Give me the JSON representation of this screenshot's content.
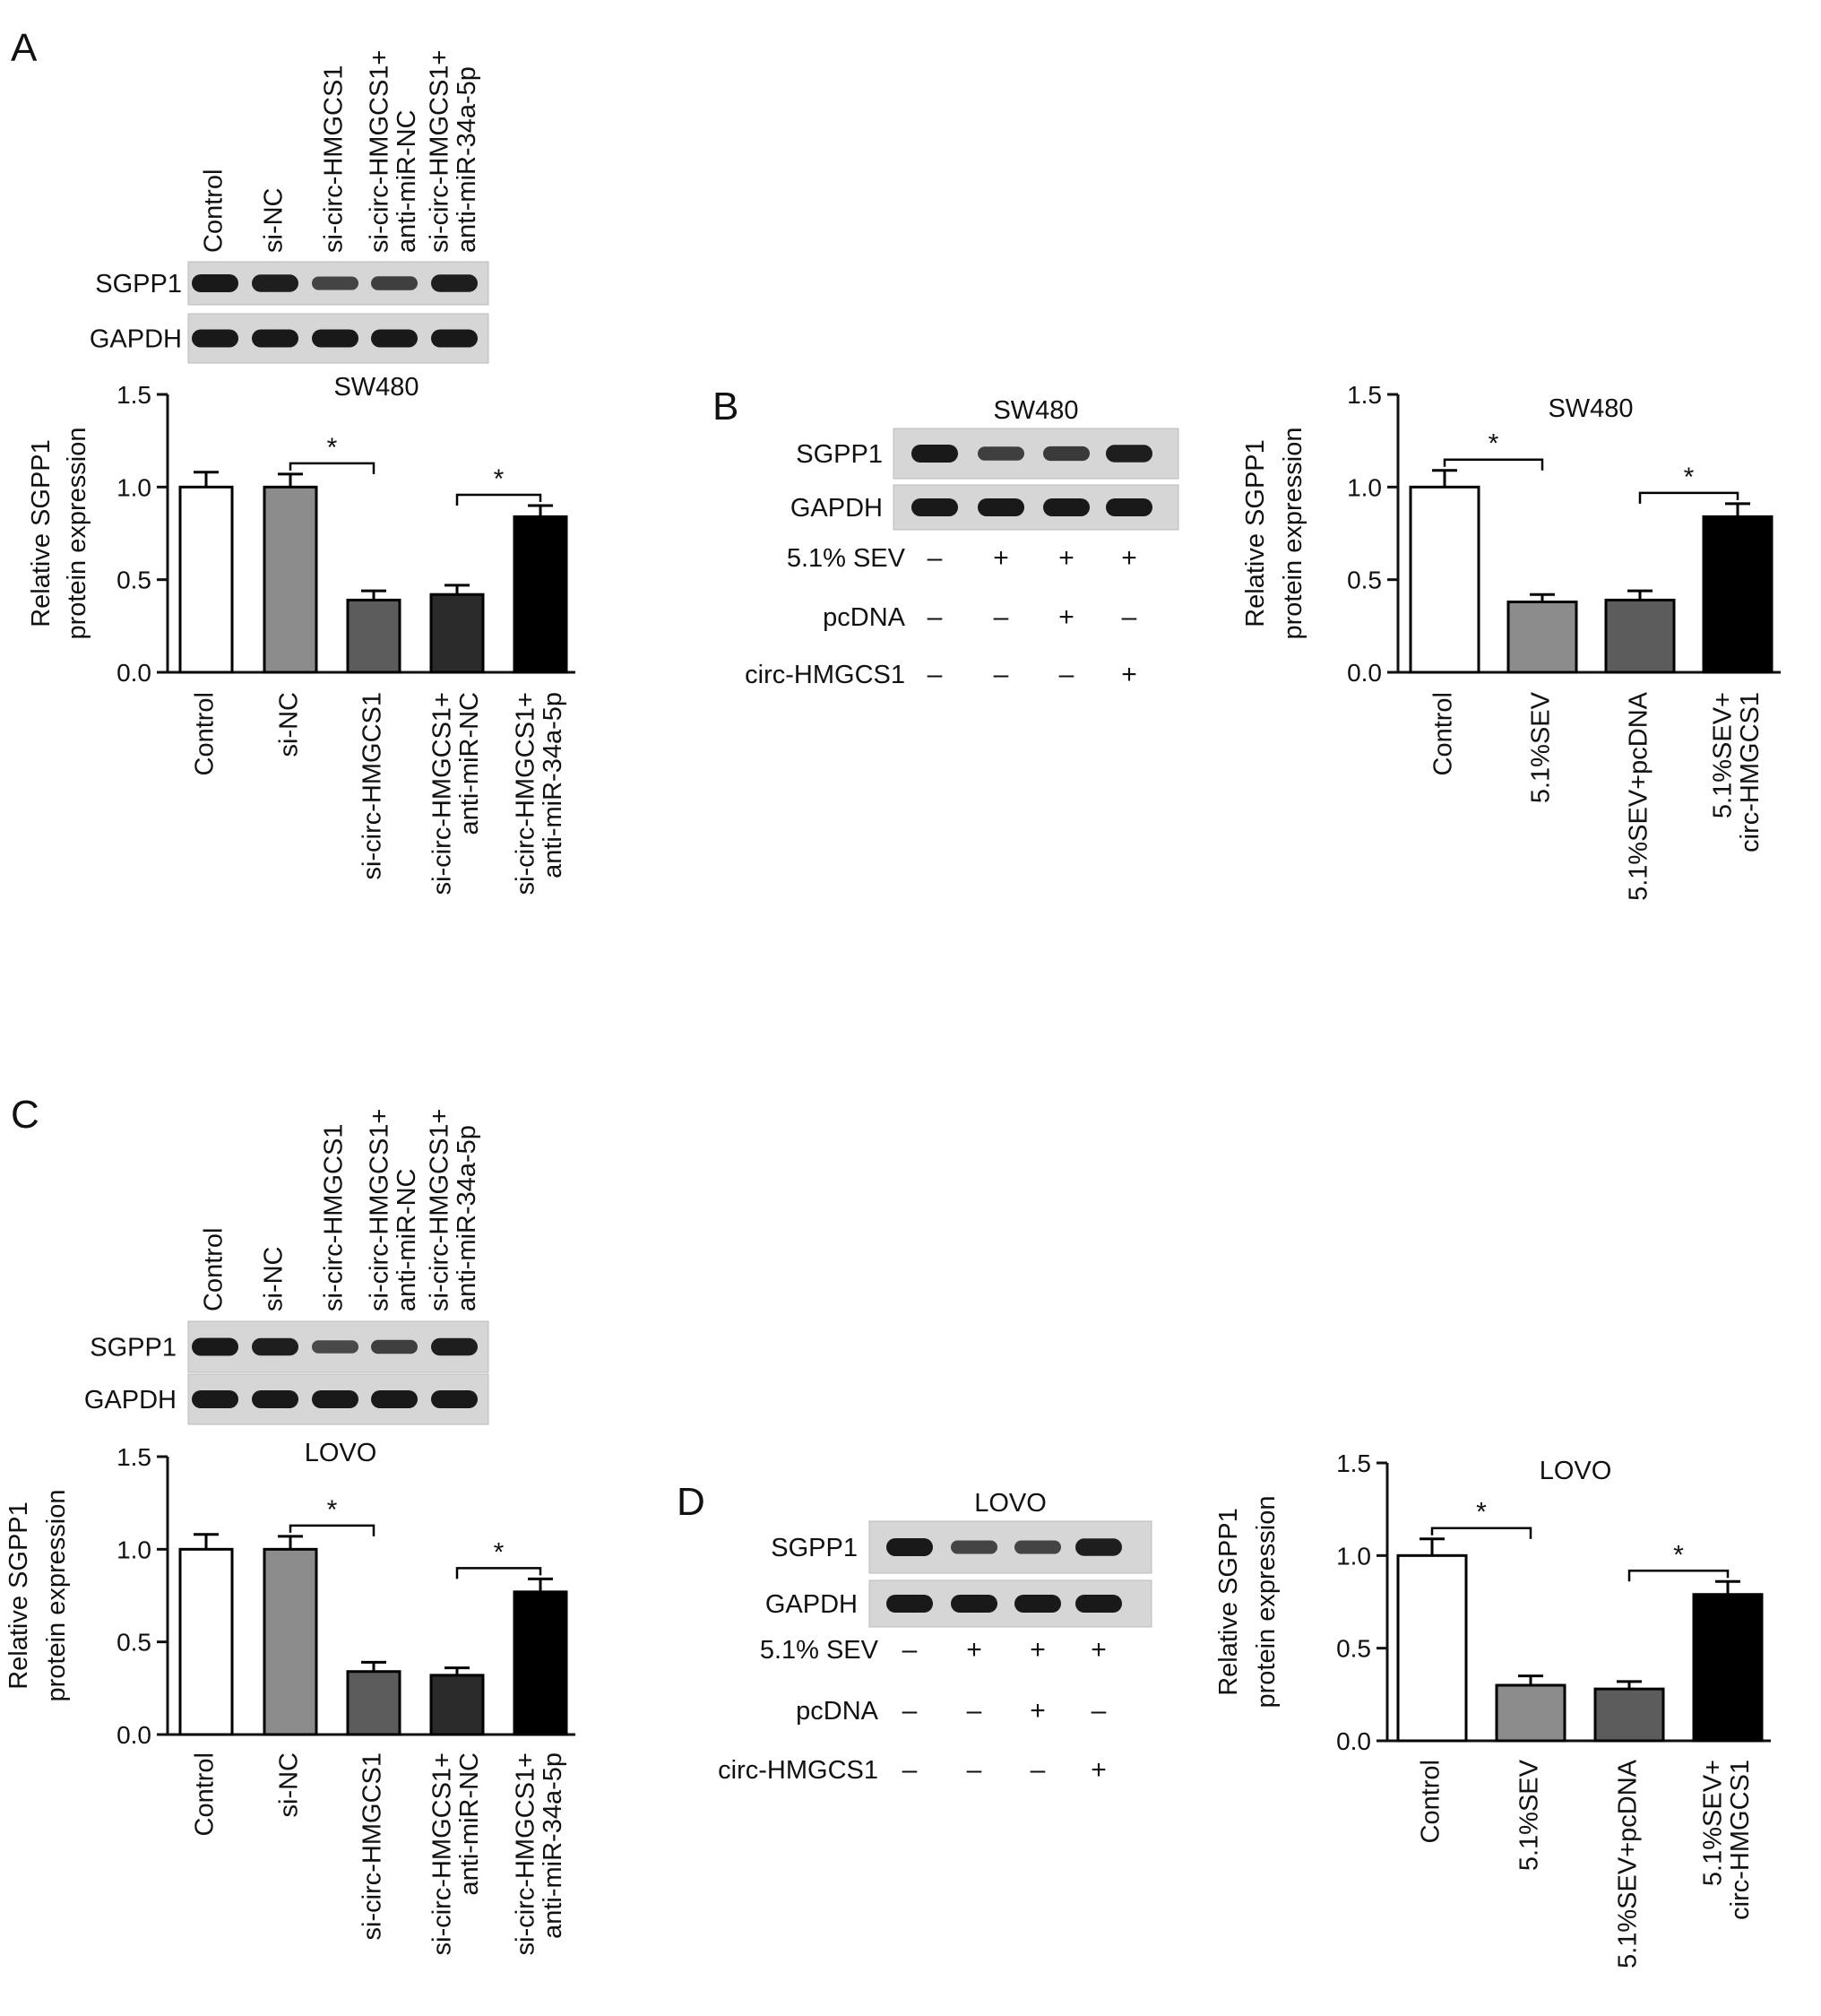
{
  "panels": {
    "A": {
      "letter": "A"
    },
    "B": {
      "letter": "B"
    },
    "C": {
      "letter": "C"
    },
    "D": {
      "letter": "D"
    }
  },
  "blots": {
    "A": {
      "lanes": [
        "Control",
        "si-NC",
        "si-circ-HMGCS1",
        [
          "si-circ-HMGCS1+",
          "anti-miR-NC"
        ],
        [
          "si-circ-HMGCS1+",
          "anti-miR-34a-5p"
        ]
      ],
      "rows": [
        {
          "label": "SGPP1",
          "intensity": [
            1.0,
            0.95,
            0.55,
            0.6,
            0.95
          ]
        },
        {
          "label": "GAPDH",
          "intensity": [
            1.0,
            1.0,
            1.0,
            1.0,
            1.0
          ]
        }
      ]
    },
    "B": {
      "title": "SW480",
      "rows": [
        {
          "label": "SGPP1",
          "intensity": [
            1.0,
            0.6,
            0.65,
            0.95
          ]
        },
        {
          "label": "GAPDH",
          "intensity": [
            1.0,
            1.0,
            1.0,
            1.0
          ]
        }
      ],
      "treatments": [
        {
          "label": "5.1% SEV",
          "signs": [
            "–",
            "+",
            "+",
            "+"
          ]
        },
        {
          "label": "pcDNA",
          "signs": [
            "–",
            "–",
            "+",
            "–"
          ]
        },
        {
          "label": "circ-HMGCS1",
          "signs": [
            "–",
            "–",
            "–",
            "+"
          ]
        }
      ]
    },
    "C": {
      "lanes": [
        "Control",
        "si-NC",
        "si-circ-HMGCS1",
        [
          "si-circ-HMGCS1+",
          "anti-miR-NC"
        ],
        [
          "si-circ-HMGCS1+",
          "anti-miR-34a-5p"
        ]
      ],
      "rows": [
        {
          "label": "SGPP1",
          "intensity": [
            1.0,
            0.95,
            0.5,
            0.6,
            0.95
          ]
        },
        {
          "label": "GAPDH",
          "intensity": [
            1.0,
            1.0,
            1.0,
            1.0,
            1.0
          ]
        }
      ]
    },
    "D": {
      "title": "LOVO",
      "rows": [
        {
          "label": "SGPP1",
          "intensity": [
            1.0,
            0.55,
            0.55,
            0.95
          ]
        },
        {
          "label": "GAPDH",
          "intensity": [
            1.0,
            1.0,
            1.0,
            1.0
          ]
        }
      ],
      "treatments": [
        {
          "label": "5.1% SEV",
          "signs": [
            "–",
            "+",
            "+",
            "+"
          ]
        },
        {
          "label": "pcDNA",
          "signs": [
            "–",
            "–",
            "+",
            "–"
          ]
        },
        {
          "label": "circ-HMGCS1",
          "signs": [
            "–",
            "–",
            "–",
            "+"
          ]
        }
      ]
    }
  },
  "chart_data": [
    {
      "panel": "A",
      "type": "bar",
      "title": "SW480",
      "ylabel": [
        "Relative SGPP1",
        "protein expression"
      ],
      "ylim": [
        0,
        1.5
      ],
      "yticks": [
        "0.0",
        "0.5",
        "1.0",
        "1.5"
      ],
      "categories": [
        "Control",
        "si-NC",
        "si-circ-HMGCS1",
        [
          "si-circ-HMGCS1+",
          "anti-miR-NC"
        ],
        [
          "si-circ-HMGCS1+",
          "anti-miR-34a-5p"
        ]
      ],
      "values": [
        1.0,
        1.0,
        0.39,
        0.42,
        0.84
      ],
      "errors": [
        0.08,
        0.07,
        0.05,
        0.05,
        0.06
      ],
      "colors": [
        "#ffffff",
        "#8c8c8c",
        "#5c5c5c",
        "#2b2b2b",
        "#000000"
      ],
      "significance": [
        {
          "from": 1,
          "to": 2,
          "label": "*"
        },
        {
          "from": 3,
          "to": 4,
          "label": "*"
        }
      ]
    },
    {
      "panel": "B",
      "type": "bar",
      "title": "SW480",
      "ylabel": [
        "Relative SGPP1",
        "protein expression"
      ],
      "ylim": [
        0,
        1.5
      ],
      "yticks": [
        "0.0",
        "0.5",
        "1.0",
        "1.5"
      ],
      "categories": [
        "Control",
        "5.1%SEV",
        "5.1%SEV+pcDNA",
        [
          "5.1%SEV+",
          "circ-HMGCS1"
        ]
      ],
      "values": [
        1.0,
        0.38,
        0.39,
        0.84
      ],
      "errors": [
        0.09,
        0.04,
        0.05,
        0.07
      ],
      "colors": [
        "#ffffff",
        "#8c8c8c",
        "#5c5c5c",
        "#000000"
      ],
      "significance": [
        {
          "from": 0,
          "to": 1,
          "label": "*"
        },
        {
          "from": 2,
          "to": 3,
          "label": "*"
        }
      ]
    },
    {
      "panel": "C",
      "type": "bar",
      "title": "LOVO",
      "ylabel": [
        "Relative SGPP1",
        "protein expression"
      ],
      "ylim": [
        0,
        1.5
      ],
      "yticks": [
        "0.0",
        "0.5",
        "1.0",
        "1.5"
      ],
      "categories": [
        "Control",
        "si-NC",
        "si-circ-HMGCS1",
        [
          "si-circ-HMGCS1+",
          "anti-miR-NC"
        ],
        [
          "si-circ-HMGCS1+",
          "anti-miR-34a-5p"
        ]
      ],
      "values": [
        1.0,
        1.0,
        0.34,
        0.32,
        0.77
      ],
      "errors": [
        0.08,
        0.07,
        0.05,
        0.04,
        0.07
      ],
      "colors": [
        "#ffffff",
        "#8c8c8c",
        "#5c5c5c",
        "#2b2b2b",
        "#000000"
      ],
      "significance": [
        {
          "from": 1,
          "to": 2,
          "label": "*"
        },
        {
          "from": 3,
          "to": 4,
          "label": "*"
        }
      ]
    },
    {
      "panel": "D",
      "type": "bar",
      "title": "LOVO",
      "ylabel": [
        "Relative SGPP1",
        "protein expression"
      ],
      "ylim": [
        0,
        1.5
      ],
      "yticks": [
        "0.0",
        "0.5",
        "1.0",
        "1.5"
      ],
      "categories": [
        "Control",
        "5.1%SEV",
        "5.1%SEV+pcDNA",
        [
          "5.1%SEV+",
          "circ-HMGCS1"
        ]
      ],
      "values": [
        1.0,
        0.3,
        0.28,
        0.79
      ],
      "errors": [
        0.09,
        0.05,
        0.04,
        0.07
      ],
      "colors": [
        "#ffffff",
        "#8c8c8c",
        "#5c5c5c",
        "#000000"
      ],
      "significance": [
        {
          "from": 0,
          "to": 1,
          "label": "*"
        },
        {
          "from": 2,
          "to": 3,
          "label": "*"
        }
      ]
    }
  ]
}
